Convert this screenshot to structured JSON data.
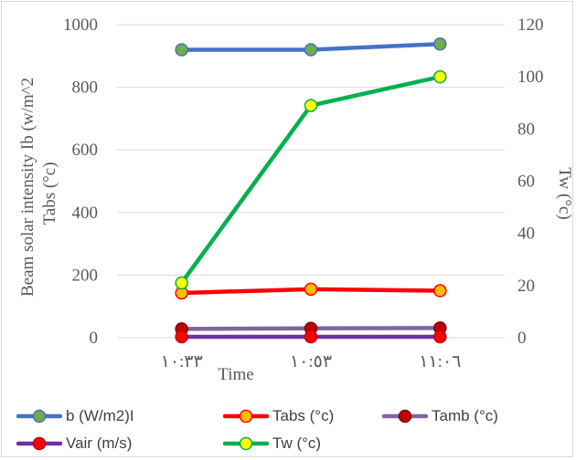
{
  "chart_data": {
    "type": "line",
    "categories": [
      "١٠:٣٣",
      "١٠:٥٣",
      "١١:٠٦"
    ],
    "xlabel": "Time",
    "ylabel_left_line1": "Beam solar intensity Ib  (w/m^2",
    "ylabel_left_line2": "Tabs (°c)",
    "ylabel_right": "Tw (°c)",
    "ylim_left": [
      0,
      1000
    ],
    "ylim_right": [
      0,
      120
    ],
    "yticks_left": [
      "0",
      "200",
      "400",
      "600",
      "800",
      "1000"
    ],
    "yticks_right": [
      "0",
      "20",
      "40",
      "60",
      "80",
      "100",
      "120"
    ],
    "grid": true,
    "legend_position": "bottom",
    "series": [
      {
        "name": "b (W/m2)I",
        "axis": "left",
        "values": [
          920,
          920,
          938
        ],
        "line_color": "#4472c4",
        "marker_fill": "#70ad47",
        "marker_edge": "#4472c4"
      },
      {
        "name": "Tabs (°c)",
        "axis": "left",
        "values": [
          143,
          155,
          150
        ],
        "line_color": "#ff0000",
        "marker_fill": "#ffc000",
        "marker_edge": "#ff0000"
      },
      {
        "name": "Tamb (°c)",
        "axis": "left",
        "values": [
          28,
          30,
          31
        ],
        "line_color": "#8064a2",
        "marker_fill": "#c00000",
        "marker_edge": "#7f0000"
      },
      {
        "name": "Vair (m/s)",
        "axis": "left",
        "values": [
          3,
          3,
          3
        ],
        "line_color": "#7030a0",
        "marker_fill": "#ff0000",
        "marker_edge": "#c00000"
      },
      {
        "name": "Tw (°c)",
        "axis": "right",
        "values": [
          21,
          89,
          100
        ],
        "line_color": "#00b050",
        "marker_fill": "#ffff00",
        "marker_edge": "#00b050"
      }
    ]
  }
}
